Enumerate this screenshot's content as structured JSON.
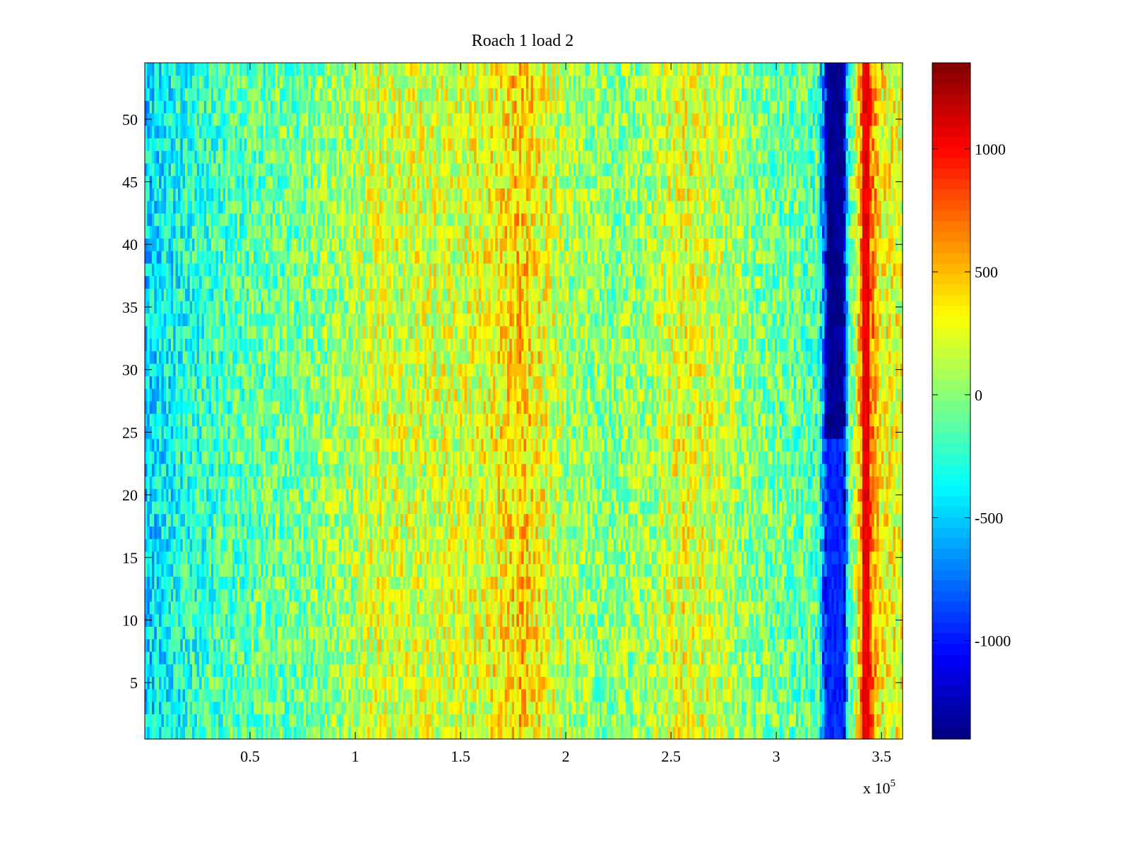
{
  "figure": {
    "background": "#ffffff"
  },
  "chart_data": {
    "type": "heatmap",
    "title": "Roach 1 load 2",
    "xlabel": "",
    "ylabel": "",
    "colormap": "jet",
    "x_multiplier_label": "x 10",
    "x_multiplier_exponent": "5",
    "xlim": [
      0,
      3.6
    ],
    "ylim": [
      0.5,
      54.5
    ],
    "x_ticks": [
      0.5,
      1,
      1.5,
      2,
      2.5,
      3,
      3.5
    ],
    "x_tick_labels": [
      "0.5",
      "1",
      "1.5",
      "2",
      "2.5",
      "3",
      "3.5"
    ],
    "y_ticks": [
      5,
      10,
      15,
      20,
      25,
      30,
      35,
      40,
      45,
      50
    ],
    "y_tick_labels": [
      "5",
      "10",
      "15",
      "20",
      "25",
      "30",
      "35",
      "40",
      "45",
      "50"
    ],
    "rows": 54,
    "clim": [
      -1400,
      1350
    ],
    "colorbar_ticks": [
      1000,
      500,
      0,
      -500,
      -1000
    ],
    "colorbar_tick_labels": [
      "1000",
      "500",
      "0",
      "-500",
      "-1000"
    ],
    "column_profile": [
      {
        "x": 0.0,
        "value": -480
      },
      {
        "x": 0.15,
        "value": -330
      },
      {
        "x": 0.3,
        "value": -210
      },
      {
        "x": 0.5,
        "value": -120
      },
      {
        "x": 0.75,
        "value": -60
      },
      {
        "x": 0.95,
        "value": 60
      },
      {
        "x": 1.1,
        "value": 200
      },
      {
        "x": 1.3,
        "value": 190
      },
      {
        "x": 1.55,
        "value": 210
      },
      {
        "x": 1.7,
        "value": 330
      },
      {
        "x": 1.78,
        "value": 480
      },
      {
        "x": 1.86,
        "value": 330
      },
      {
        "x": 2.0,
        "value": 90
      },
      {
        "x": 2.2,
        "value": -20
      },
      {
        "x": 2.4,
        "value": 60
      },
      {
        "x": 2.55,
        "value": 260
      },
      {
        "x": 2.7,
        "value": 180
      },
      {
        "x": 2.9,
        "value": -40
      },
      {
        "x": 3.1,
        "value": -100
      },
      {
        "x": 3.2,
        "value": -150
      },
      {
        "x": 3.25,
        "value": -1350
      },
      {
        "x": 3.32,
        "value": -1350
      },
      {
        "x": 3.34,
        "value": -250
      },
      {
        "x": 3.38,
        "value": 180
      },
      {
        "x": 3.42,
        "value": 1050
      },
      {
        "x": 3.45,
        "value": 700
      },
      {
        "x": 3.5,
        "value": 300
      },
      {
        "x": 3.6,
        "value": 250
      }
    ],
    "features": [
      {
        "name": "dark-blue-band",
        "x_range": [
          3.24,
          3.32
        ],
        "value": -1350,
        "row_range": [
          25,
          54
        ]
      },
      {
        "name": "blue-band-lower",
        "x_range": [
          3.24,
          3.32
        ],
        "value": -950,
        "row_range": [
          1,
          24
        ]
      },
      {
        "name": "red-band",
        "x_range": [
          3.41,
          3.44
        ],
        "value": 1050,
        "row_range": [
          1,
          54
        ]
      }
    ],
    "grid": false,
    "legend": "none"
  }
}
